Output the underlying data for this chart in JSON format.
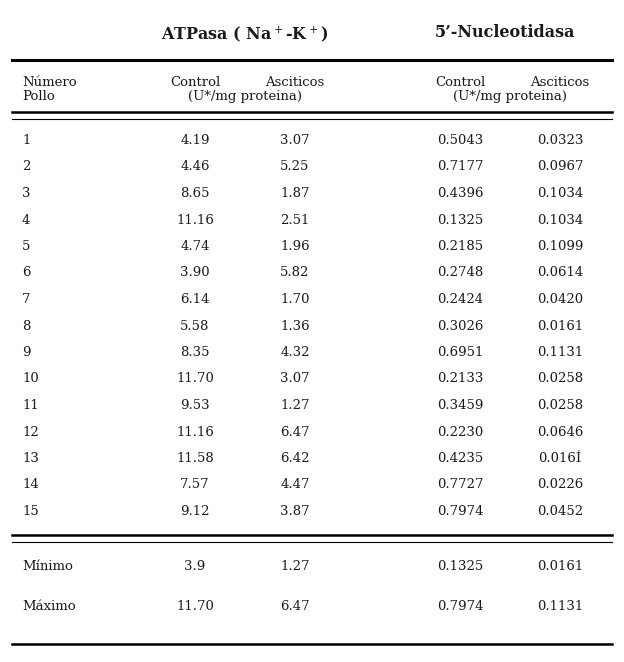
{
  "title_atpasa": "ATPasa ( Na$^+$-K$^+$)",
  "title_nucl": "5’-Nucleotidasa",
  "col_headers_row1": [
    "Número",
    "Control",
    "Asciticos",
    "Control",
    "Asciticos"
  ],
  "col_headers_row2": [
    "Pollo",
    "(U*/mg proteina)",
    "",
    "(U*/mg proteina)",
    ""
  ],
  "rows": [
    [
      "1",
      "4.19",
      "3.07",
      "0.5043",
      "0.0323"
    ],
    [
      "2",
      "4.46",
      "5.25",
      "0.7177",
      "0.0967"
    ],
    [
      "3",
      "8.65",
      "1.87",
      "0.4396",
      "0.1034"
    ],
    [
      "4",
      "11.16",
      "2.51",
      "0.1325",
      "0.1034"
    ],
    [
      "5",
      "4.74",
      "1.96",
      "0.2185",
      "0.1099"
    ],
    [
      "6",
      "3.90",
      "5.82",
      "0.2748",
      "0.0614"
    ],
    [
      "7",
      "6.14",
      "1.70",
      "0.2424",
      "0.0420"
    ],
    [
      "8",
      "5.58",
      "1.36",
      "0.3026",
      "0.0161"
    ],
    [
      "9",
      "8.35",
      "4.32",
      "0.6951",
      "0.1131"
    ],
    [
      "10",
      "11.70",
      "3.07",
      "0.2133",
      "0.0258"
    ],
    [
      "11",
      "9.53",
      "1.27",
      "0.3459",
      "0.0258"
    ],
    [
      "12",
      "11.16",
      "6.47",
      "0.2230",
      "0.0646"
    ],
    [
      "13",
      "11.58",
      "6.42",
      "0.4235",
      "0.016Í"
    ],
    [
      "14",
      "7.57",
      "4.47",
      "0.7727",
      "0.0226"
    ],
    [
      "15",
      "9.12",
      "3.87",
      "0.7974",
      "0.0452"
    ]
  ],
  "summary_rows": [
    [
      "Mínimo",
      "3.9",
      "1.27",
      "0.1325",
      "0.0161"
    ],
    [
      "Máximo",
      "11.70",
      "6.47",
      "0.7974",
      "0.1131"
    ]
  ],
  "bg_color": "#ffffff",
  "text_color": "#1a1a1a",
  "fontsize": 9.5,
  "header_fontsize": 9.5,
  "title_fontsize": 11.5
}
